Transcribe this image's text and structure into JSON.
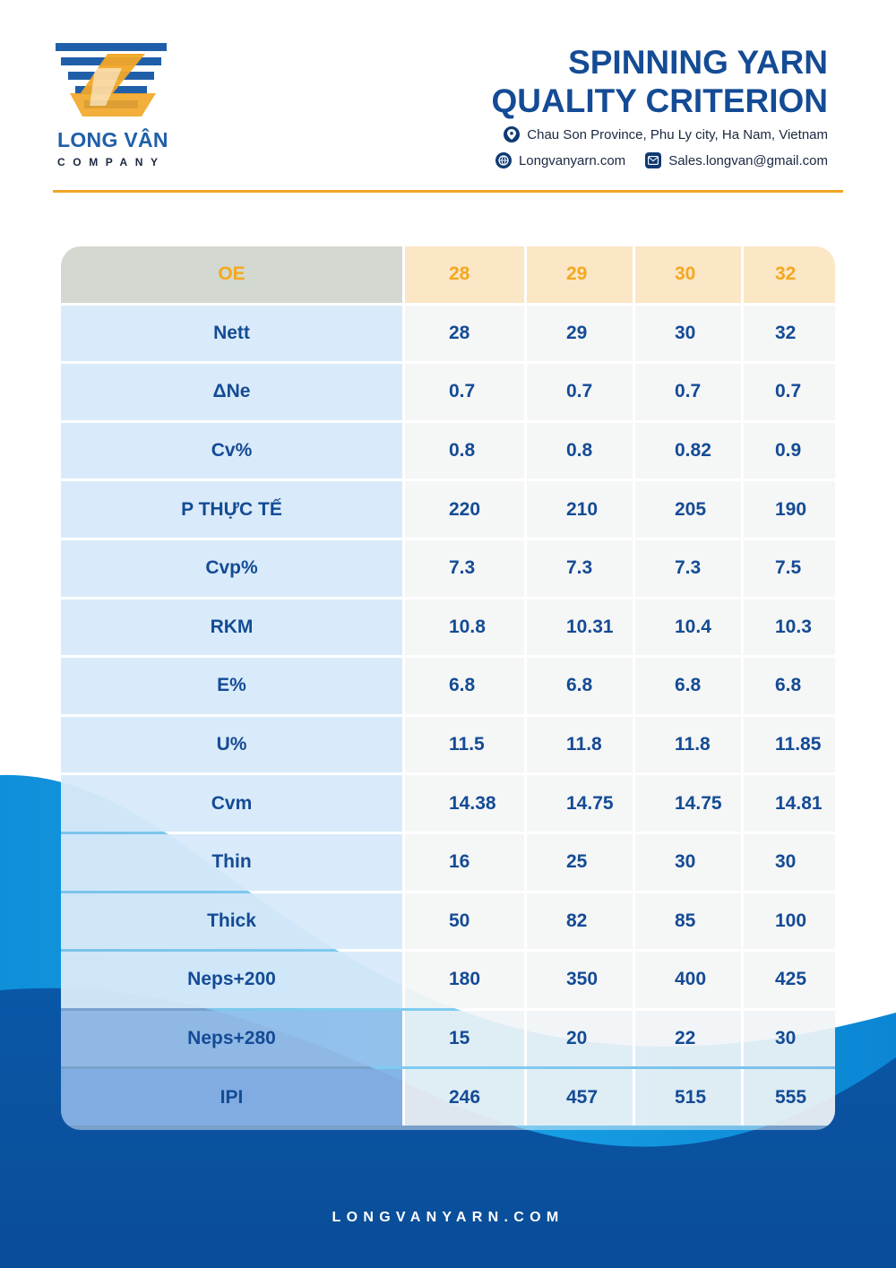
{
  "brand": {
    "name": "LONG VÂN",
    "sub": "COMPANY",
    "colors": {
      "blue": "#1f5fa9",
      "orange": "#f2a626"
    }
  },
  "header": {
    "title_line1": "SPINNING YARN",
    "title_line2": "QUALITY CRITERION",
    "address": "Chau Son Province, Phu Ly city, Ha Nam, Vietnam",
    "website": "Longvanyarn.com",
    "email": "Sales.longvan@gmail.com",
    "icons": [
      "location-pin-icon",
      "globe-icon",
      "mail-icon"
    ]
  },
  "table": {
    "header": {
      "label": "OE",
      "cols": [
        "28",
        "29",
        "30",
        "32"
      ]
    },
    "rows": [
      {
        "label": "Nett",
        "values": [
          "28",
          "29",
          "30",
          "32"
        ]
      },
      {
        "label": "ΔNe",
        "values": [
          "0.7",
          "0.7",
          "0.7",
          "0.7"
        ]
      },
      {
        "label": "Cv%",
        "values": [
          "0.8",
          "0.8",
          "0.82",
          "0.9"
        ]
      },
      {
        "label": "P THỰC TẾ",
        "values": [
          "220",
          "210",
          "205",
          "190"
        ]
      },
      {
        "label": "Cvp%",
        "values": [
          "7.3",
          "7.3",
          "7.3",
          "7.5"
        ]
      },
      {
        "label": "RKM",
        "values": [
          "10.8",
          "10.31",
          "10.4",
          "10.3"
        ]
      },
      {
        "label": "E%",
        "values": [
          "6.8",
          "6.8",
          "6.8",
          "6.8"
        ]
      },
      {
        "label": "U%",
        "values": [
          "11.5",
          "11.8",
          "11.8",
          "11.85"
        ]
      },
      {
        "label": "Cvm",
        "values": [
          "14.38",
          "14.75",
          "14.75",
          "14.81"
        ]
      },
      {
        "label": "Thin",
        "values": [
          "16",
          "25",
          "30",
          "30"
        ]
      },
      {
        "label": "Thick",
        "values": [
          "50",
          "82",
          "85",
          "100"
        ]
      },
      {
        "label": "Neps+200",
        "values": [
          "180",
          "350",
          "400",
          "425"
        ]
      },
      {
        "label": "Neps+280",
        "values": [
          "15",
          "20",
          "22",
          "30"
        ]
      },
      {
        "label": "IPI",
        "values": [
          "246",
          "457",
          "515",
          "555"
        ]
      }
    ]
  },
  "footer": {
    "url": "LONGVANYARN.COM"
  }
}
